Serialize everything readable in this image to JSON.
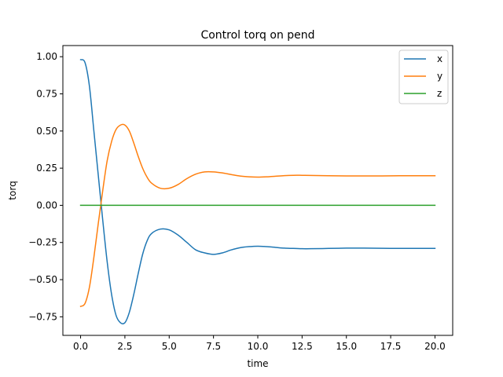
{
  "chart_data": {
    "type": "line",
    "title": "Control torq on pend",
    "xlabel": "time",
    "ylabel": "torq",
    "xlim": [
      -1.0,
      21.0
    ],
    "ylim": [
      -0.875,
      1.075
    ],
    "xticks": [
      0.0,
      2.5,
      5.0,
      7.5,
      10.0,
      12.5,
      15.0,
      17.5,
      20.0
    ],
    "xtick_labels": [
      "0.0",
      "2.5",
      "5.0",
      "7.5",
      "10.0",
      "12.5",
      "15.0",
      "17.5",
      "20.0"
    ],
    "yticks": [
      -0.75,
      -0.5,
      -0.25,
      0.0,
      0.25,
      0.5,
      0.75,
      1.0
    ],
    "ytick_labels": [
      "−0.75",
      "−0.50",
      "−0.25",
      "0.00",
      "0.25",
      "0.50",
      "0.75",
      "1.00"
    ],
    "grid": false,
    "legend_position": "top-right",
    "x": [
      0.0,
      0.25,
      0.5,
      0.75,
      1.0,
      1.25,
      1.5,
      1.75,
      2.0,
      2.25,
      2.5,
      2.75,
      3.0,
      3.25,
      3.5,
      3.75,
      4.0,
      4.5,
      5.0,
      5.5,
      6.0,
      6.5,
      7.0,
      7.5,
      8.0,
      8.5,
      9.0,
      9.5,
      10.0,
      10.5,
      11.0,
      11.5,
      12.0,
      12.5,
      13.0,
      14.0,
      15.0,
      16.0,
      17.0,
      18.0,
      19.0,
      20.0
    ],
    "series": [
      {
        "name": "x",
        "color": "#1f77b4",
        "values": [
          0.98,
          0.96,
          0.8,
          0.5,
          0.2,
          -0.1,
          -0.38,
          -0.6,
          -0.74,
          -0.79,
          -0.79,
          -0.72,
          -0.6,
          -0.46,
          -0.33,
          -0.24,
          -0.19,
          -0.16,
          -0.165,
          -0.2,
          -0.25,
          -0.3,
          -0.32,
          -0.33,
          -0.32,
          -0.3,
          -0.285,
          -0.278,
          -0.275,
          -0.278,
          -0.283,
          -0.288,
          -0.29,
          -0.292,
          -0.292,
          -0.29,
          -0.288,
          -0.288,
          -0.289,
          -0.29,
          -0.29,
          -0.29
        ]
      },
      {
        "name": "y",
        "color": "#ff7f0e",
        "values": [
          -0.68,
          -0.66,
          -0.55,
          -0.35,
          -0.12,
          0.1,
          0.3,
          0.43,
          0.51,
          0.54,
          0.54,
          0.5,
          0.42,
          0.33,
          0.25,
          0.19,
          0.15,
          0.115,
          0.115,
          0.14,
          0.18,
          0.21,
          0.225,
          0.225,
          0.218,
          0.207,
          0.197,
          0.192,
          0.19,
          0.192,
          0.196,
          0.2,
          0.202,
          0.202,
          0.201,
          0.199,
          0.198,
          0.198,
          0.198,
          0.199,
          0.199,
          0.199
        ]
      },
      {
        "name": "z",
        "color": "#2ca02c",
        "values": [
          0.0,
          0.0,
          0.0,
          0.0,
          0.0,
          0.0,
          0.0,
          0.0,
          0.0,
          0.0,
          0.0,
          0.0,
          0.0,
          0.0,
          0.0,
          0.0,
          0.0,
          0.0,
          0.0,
          0.0,
          0.0,
          0.0,
          0.0,
          0.0,
          0.0,
          0.0,
          0.0,
          0.0,
          0.0,
          0.0,
          0.0,
          0.0,
          0.0,
          0.0,
          0.0,
          0.0,
          0.0,
          0.0,
          0.0,
          0.0,
          0.0,
          0.0
        ]
      }
    ]
  }
}
